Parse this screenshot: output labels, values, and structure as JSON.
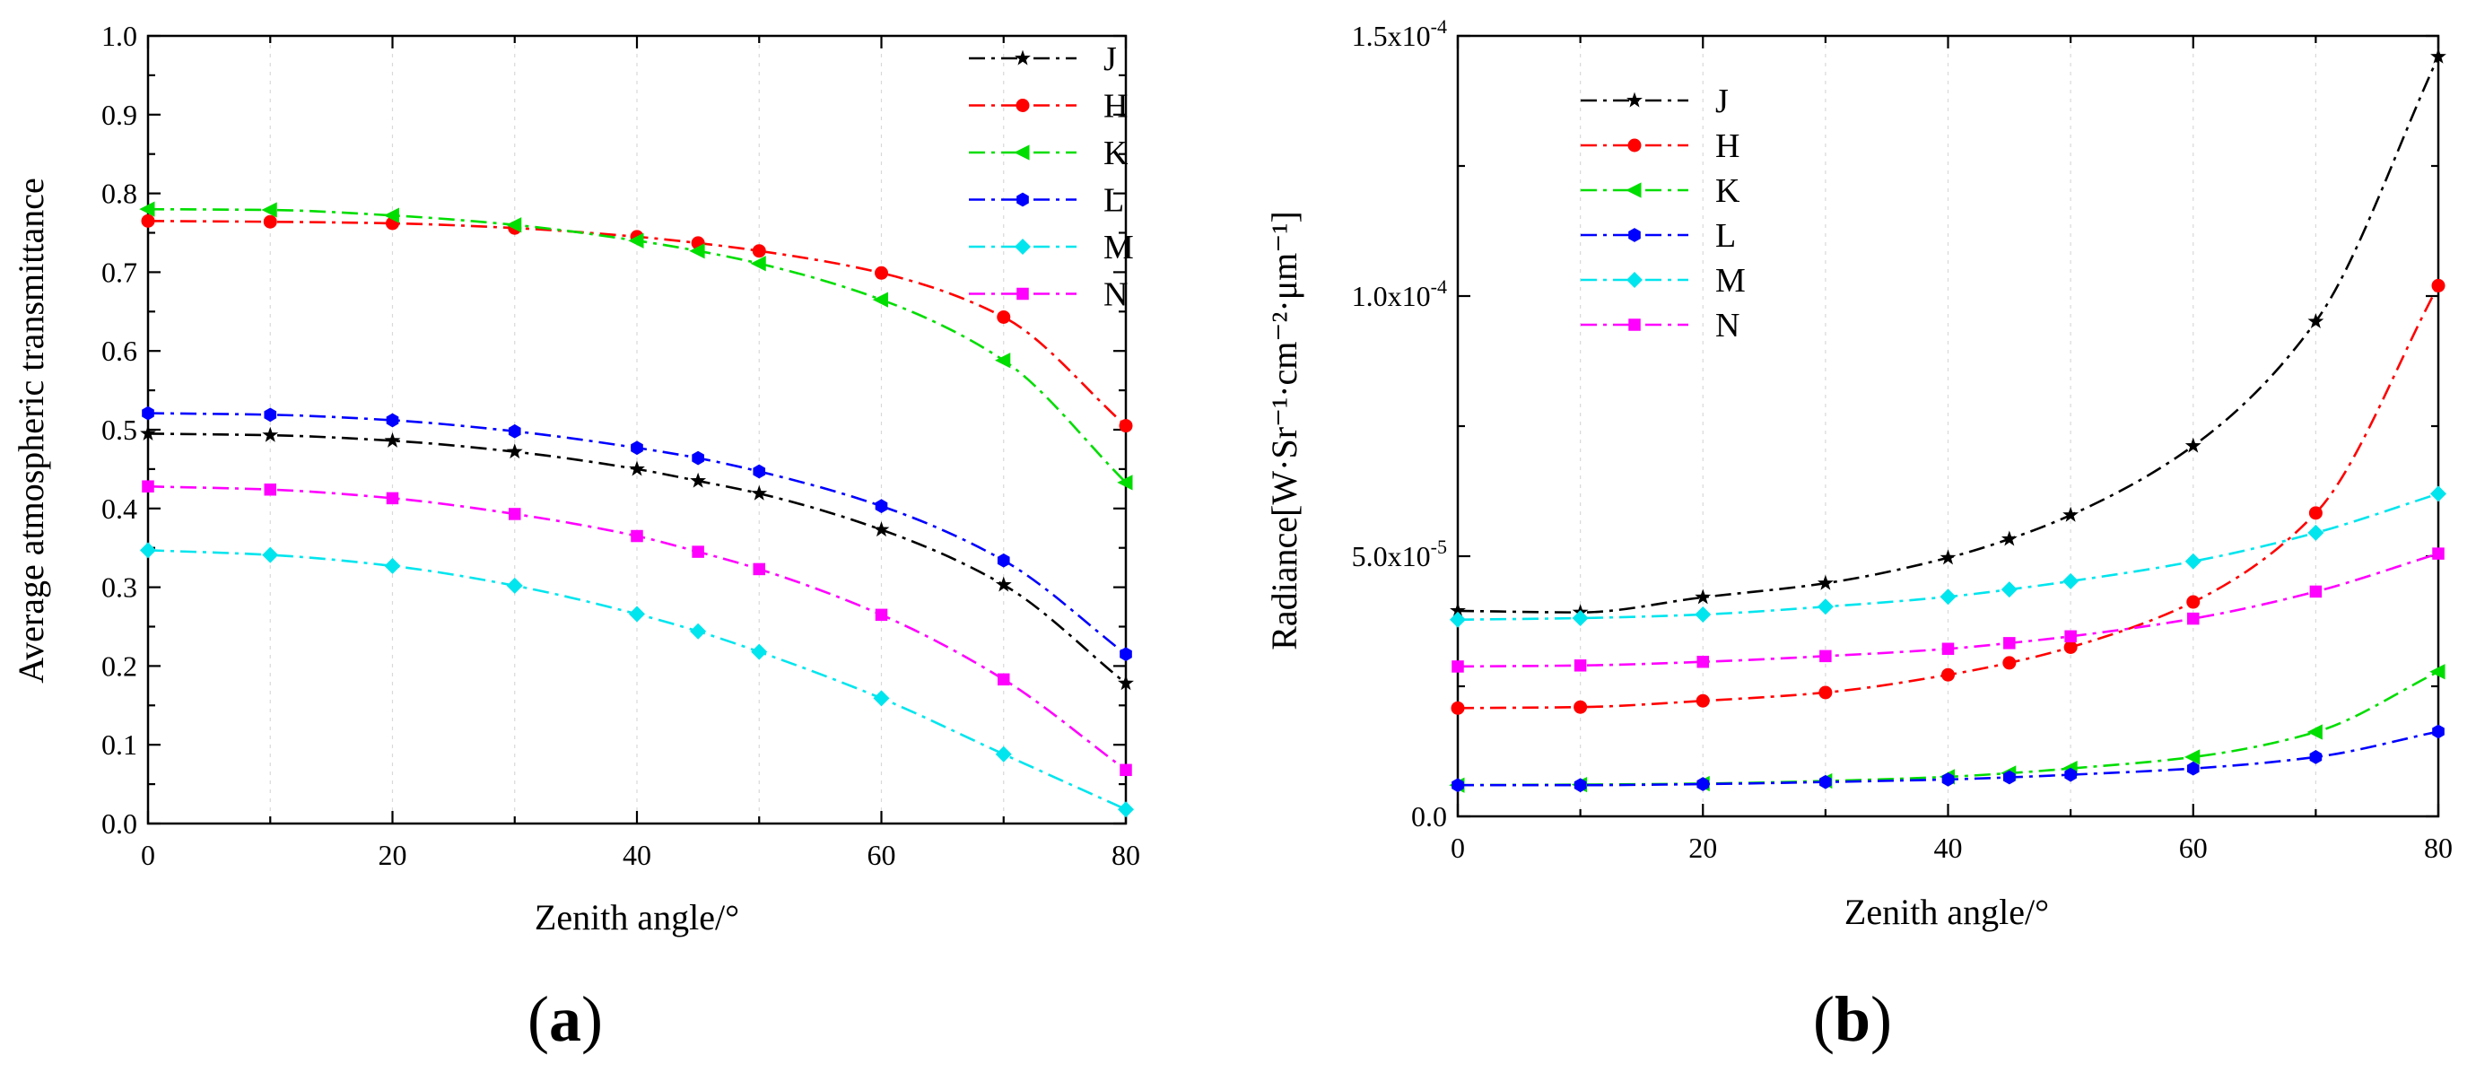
{
  "chart_data": [
    {
      "type": "line",
      "panel_label": "a",
      "title": "",
      "xlabel": "Zenith angle/°",
      "ylabel": "Average atmospheric transmittance",
      "xlim": [
        0,
        80
      ],
      "ylim": [
        0,
        1.0
      ],
      "x_ticks": [
        0,
        20,
        40,
        60,
        80
      ],
      "x_tick_labels": [
        "0",
        "20",
        "40",
        "60",
        "80"
      ],
      "y_ticks": [
        0.0,
        0.1,
        0.2,
        0.3,
        0.4,
        0.5,
        0.6,
        0.7,
        0.8,
        0.9,
        1.0
      ],
      "y_tick_labels": [
        "0.0",
        "0.1",
        "0.2",
        "0.3",
        "0.4",
        "0.5",
        "0.6",
        "0.7",
        "0.8",
        "0.9",
        "1.0"
      ],
      "grid": "vertical",
      "legend_position": "top-right",
      "x": [
        0,
        10,
        20,
        30,
        40,
        45,
        50,
        60,
        70,
        80
      ],
      "series": [
        {
          "name": "J",
          "color": "#000000",
          "marker": "star",
          "values": [
            0.495,
            0.493,
            0.486,
            0.472,
            0.45,
            0.435,
            0.419,
            0.373,
            0.303,
            0.178
          ]
        },
        {
          "name": "H",
          "color": "#ff0000",
          "marker": "circle",
          "values": [
            0.765,
            0.764,
            0.762,
            0.756,
            0.745,
            0.737,
            0.727,
            0.699,
            0.643,
            0.505
          ]
        },
        {
          "name": "K",
          "color": "#00dd00",
          "marker": "triangle-left",
          "values": [
            0.78,
            0.779,
            0.772,
            0.76,
            0.74,
            0.727,
            0.711,
            0.665,
            0.588,
            0.433
          ]
        },
        {
          "name": "L",
          "color": "#0000ff",
          "marker": "hexagon",
          "values": [
            0.521,
            0.519,
            0.512,
            0.498,
            0.477,
            0.464,
            0.447,
            0.403,
            0.334,
            0.215
          ]
        },
        {
          "name": "M",
          "color": "#00e5ee",
          "marker": "diamond",
          "values": [
            0.347,
            0.341,
            0.327,
            0.302,
            0.266,
            0.244,
            0.218,
            0.159,
            0.088,
            0.018
          ]
        },
        {
          "name": "N",
          "color": "#ff00ff",
          "marker": "square",
          "values": [
            0.428,
            0.424,
            0.413,
            0.393,
            0.365,
            0.345,
            0.323,
            0.265,
            0.183,
            0.068
          ]
        }
      ]
    },
    {
      "type": "line",
      "panel_label": "b",
      "title": "",
      "xlabel": "Zenith angle/°",
      "ylabel": "Radiance[W·Sr⁻¹·cm⁻²·μm⁻¹]",
      "xlim": [
        0,
        80
      ],
      "ylim": [
        0,
        0.00015
      ],
      "x_ticks": [
        0,
        20,
        40,
        60,
        80
      ],
      "x_tick_labels": [
        "0",
        "20",
        "40",
        "60",
        "80"
      ],
      "y_ticks": [
        0,
        5e-05,
        0.0001,
        0.00015
      ],
      "y_tick_labels": [
        {
          "base": "0.0",
          "exp": ""
        },
        {
          "base": "5.0x10",
          "exp": "-5"
        },
        {
          "base": "1.0x10",
          "exp": "-4"
        },
        {
          "base": "1.5x10",
          "exp": "-4"
        }
      ],
      "grid": "vertical",
      "legend_position": "top-left",
      "x": [
        0,
        10,
        20,
        30,
        40,
        45,
        50,
        60,
        70,
        80
      ],
      "series": [
        {
          "name": "J",
          "color": "#000000",
          "marker": "star",
          "values": [
            3.95e-05,
            3.92e-05,
            4.21e-05,
            4.48e-05,
            4.97e-05,
            5.33e-05,
            5.79e-05,
            7.12e-05,
            9.51e-05,
            0.000146
          ]
        },
        {
          "name": "H",
          "color": "#ff0000",
          "marker": "circle",
          "values": [
            2.08e-05,
            2.1e-05,
            2.22e-05,
            2.38e-05,
            2.72e-05,
            2.95e-05,
            3.25e-05,
            4.12e-05,
            5.83e-05,
            0.000102
          ]
        },
        {
          "name": "K",
          "color": "#00dd00",
          "marker": "triangle-left",
          "values": [
            6e-06,
            6.1e-06,
            6.3e-06,
            6.8e-06,
            7.6e-06,
            8.3e-06,
            9.2e-06,
            1.14e-05,
            1.62e-05,
            2.78e-05
          ]
        },
        {
          "name": "L",
          "color": "#0000ff",
          "marker": "hexagon",
          "values": [
            6e-06,
            6e-06,
            6.2e-06,
            6.6e-06,
            7.1e-06,
            7.5e-06,
            8e-06,
            9.2e-06,
            1.14e-05,
            1.63e-05
          ]
        },
        {
          "name": "M",
          "color": "#00e5ee",
          "marker": "diamond",
          "values": [
            3.78e-05,
            3.81e-05,
            3.88e-05,
            4.03e-05,
            4.22e-05,
            4.36e-05,
            4.52e-05,
            4.9e-05,
            5.45e-05,
            6.2e-05
          ]
        },
        {
          "name": "N",
          "color": "#ff00ff",
          "marker": "square",
          "values": [
            2.88e-05,
            2.9e-05,
            2.97e-05,
            3.08e-05,
            3.22e-05,
            3.33e-05,
            3.46e-05,
            3.8e-05,
            4.32e-05,
            5.05e-05
          ]
        }
      ]
    }
  ]
}
